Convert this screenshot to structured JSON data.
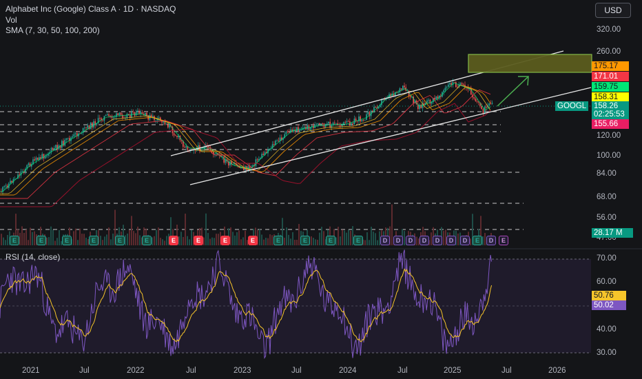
{
  "header": {
    "title": "Alphabet Inc (Google) Class A · 1D · NASDAQ",
    "vol_label": "Vol",
    "sma_label": "SMA (7, 30, 50, 100, 200)"
  },
  "currency_button": "USD",
  "price_axis": [
    "320.00",
    "260.00",
    "120.00",
    "100.00",
    "84.00",
    "68.00",
    "56.00",
    "47.00"
  ],
  "price_badges": [
    {
      "text": "175.17",
      "bg": "#ff9800",
      "fg": "#131722"
    },
    {
      "text": "171.01",
      "bg": "#f23645",
      "fg": "#ffffff"
    },
    {
      "text": "159.75",
      "bg": "#00e676",
      "fg": "#131722"
    },
    {
      "text": "158.31",
      "bg": "#ffff00",
      "fg": "#131722"
    },
    {
      "text": "158.26",
      "bg": "#089981",
      "fg": "#ffffff"
    },
    {
      "text": "02:25:53",
      "bg": "#089981",
      "fg": "#ffffff"
    },
    {
      "text": "155.66",
      "bg": "#e91e63",
      "fg": "#ffffff"
    }
  ],
  "symbol_tag": "GOOGL",
  "volume_badge": "28.17 M",
  "rsi": {
    "label": "RSI (14, close)",
    "axis": [
      "70.00",
      "60.00",
      "40.00",
      "30.00"
    ],
    "value_badges": [
      {
        "text": "50.76",
        "bg": "#f7c52b",
        "fg": "#131722"
      },
      {
        "text": "50.02",
        "bg": "#7e57c2",
        "fg": "#ffffff"
      }
    ]
  },
  "time_axis": [
    "2021",
    "Jul",
    "2022",
    "Jul",
    "2023",
    "Jul",
    "2024",
    "Jul",
    "2025",
    "Jul",
    "2026"
  ],
  "events": [
    "E",
    "E",
    "E",
    "E",
    "E",
    "E",
    "E",
    "E",
    "E",
    "E",
    "E",
    "E",
    "E",
    "E",
    "D",
    "D",
    "D",
    "D",
    "D",
    "D",
    "D",
    "E",
    "D",
    "E"
  ],
  "colors": {
    "background": "#141518",
    "up": "#26a69a",
    "down": "#ef5350",
    "rsi_line": "#7e57c2",
    "rsi_ma": "#f7c52b",
    "target_zone": "#6b6a1c",
    "channel": "#ffffff",
    "arrow": "#4caf50"
  },
  "icons": {
    "earnings": "earnings-icon",
    "dividend": "dividend-icon"
  }
}
